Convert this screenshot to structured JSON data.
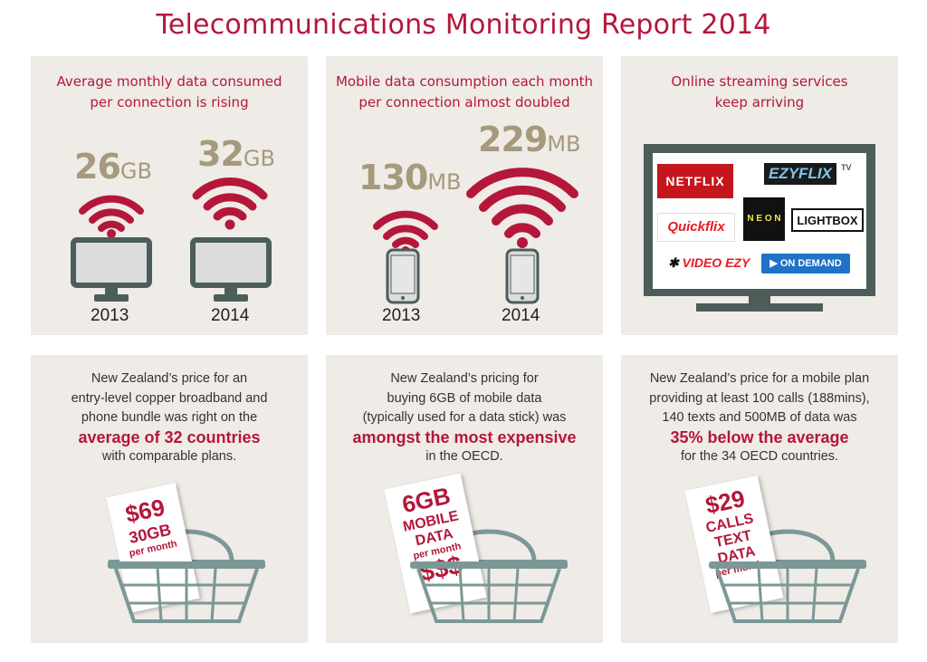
{
  "title": "Telecommunications Monitoring Report 2014",
  "colors": {
    "accent": "#b4173a",
    "tan": "#a69a7c",
    "panel": "#efebe7",
    "device": "#4c5d5a"
  },
  "panel1": {
    "heading": [
      "Average monthly data consumed",
      "per connection is rising"
    ],
    "items": [
      {
        "value": "26",
        "unit": "GB",
        "year": "2013"
      },
      {
        "value": "32",
        "unit": "GB",
        "year": "2014"
      }
    ]
  },
  "panel2": {
    "heading": [
      "Mobile data consumption each month",
      "per connection almost doubled"
    ],
    "items": [
      {
        "value": "130",
        "unit": "MB",
        "year": "2013"
      },
      {
        "value": "229",
        "unit": "MB",
        "year": "2014"
      }
    ]
  },
  "panel3": {
    "heading": [
      "Online streaming services",
      "keep arriving"
    ],
    "logos": {
      "netflix": "NETFLIX",
      "ezyflix": "EZYFLIX",
      "ezyflix_tv": "TV",
      "quickflix": "Quickflix",
      "neon": "N E O N",
      "lightbox": "LIGHTBOX",
      "videoezy": "VIDEO EZY",
      "ondemand": "ON DEMAND"
    }
  },
  "panel4": {
    "lines": [
      "New Zealand’s price for an",
      "entry-level copper broadband and",
      "phone bundle was right on the"
    ],
    "highlight": "average of 32 countries",
    "after": "with comparable plans.",
    "tag": [
      "$69",
      "30GB",
      "per month"
    ]
  },
  "panel5": {
    "lines": [
      "New Zealand’s pricing for",
      "buying 6GB of mobile data",
      "(typically used for a data stick) was"
    ],
    "highlight": "amongst the most expensive",
    "after": "in the OECD.",
    "tag": [
      "6GB",
      "MOBILE",
      "DATA",
      "per month",
      "$$$"
    ]
  },
  "panel6": {
    "lines": [
      "New Zealand’s price for a mobile plan",
      "providing at least 100 calls (188mins),",
      "140 texts and 500MB of data was"
    ],
    "highlight": "35% below the average",
    "after": "for the 34 OECD countries.",
    "tag": [
      "$29",
      "CALLS",
      "TEXT",
      "DATA",
      "per month"
    ]
  }
}
